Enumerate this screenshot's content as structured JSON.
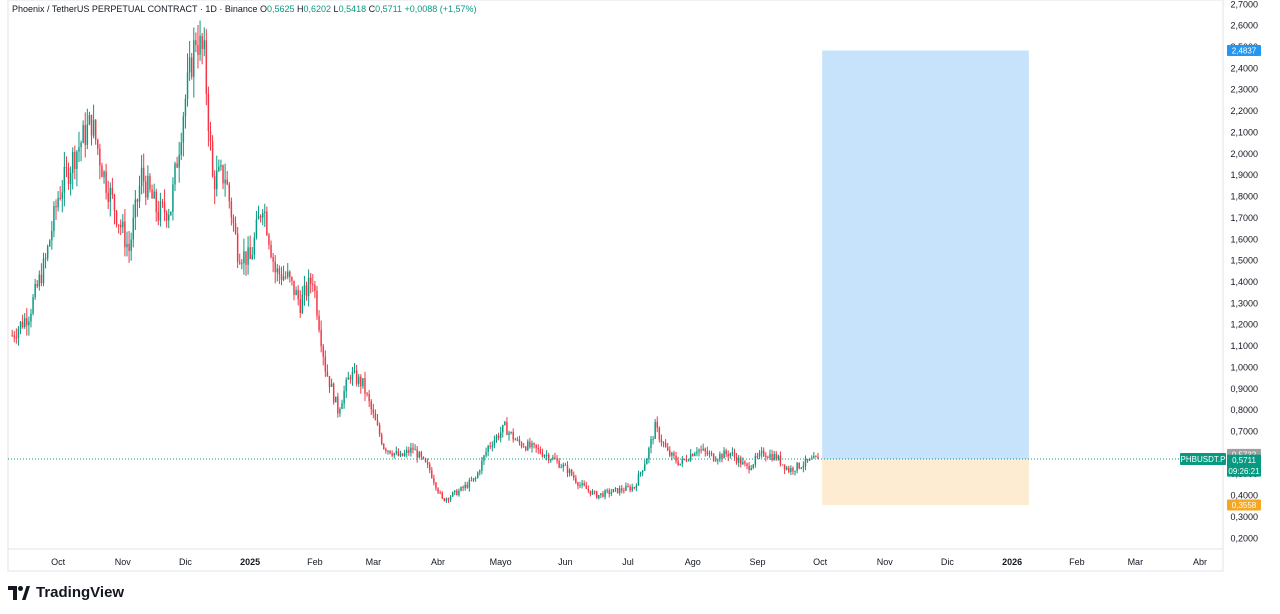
{
  "legend": {
    "symbol": "Phoenix / TetherUS PERPETUAL CONTRACT · 1D · Binance",
    "open_label": "O",
    "open": "0,5625",
    "high_label": "H",
    "high": "0,6202",
    "low_label": "L",
    "low": "0,5418",
    "close_label": "C",
    "close": "0,5711",
    "change": "+0,0088 (+1,57%)"
  },
  "footer": {
    "brand": "TradingView"
  },
  "colors": {
    "up": "#089981",
    "down": "#f23645",
    "profit_zone": "#c6e3fb",
    "loss_zone": "#fdecd1",
    "target_badge": "#2196f3",
    "stop_badge": "#f5a623",
    "last_price_badge": "#089981",
    "high_badge": "#9e9e9e"
  },
  "chart_data": {
    "type": "candlestick",
    "ylim": [
      0.15,
      2.72
    ],
    "y_ticks": [
      "2,7000",
      "2,6000",
      "2,5000",
      "2,4000",
      "2,3000",
      "2,2000",
      "2,1000",
      "2,0000",
      "1,9000",
      "1,8000",
      "1,7000",
      "1,6000",
      "1,5000",
      "1,4000",
      "1,3000",
      "1,2000",
      "1,1000",
      "1,0000",
      "0,9000",
      "0,8000",
      "0,7000",
      "0,6000",
      "0,5000",
      "0,4000",
      "0,3000",
      "0,2000"
    ],
    "x_ticks": [
      {
        "label": "Oct",
        "day": 22,
        "bold": false
      },
      {
        "label": "Nov",
        "day": 53,
        "bold": false
      },
      {
        "label": "Dic",
        "day": 83,
        "bold": false
      },
      {
        "label": "2025",
        "day": 114,
        "bold": true
      },
      {
        "label": "Feb",
        "day": 145,
        "bold": false
      },
      {
        "label": "Mar",
        "day": 173,
        "bold": false
      },
      {
        "label": "Abr",
        "day": 204,
        "bold": false
      },
      {
        "label": "Mayo",
        "day": 234,
        "bold": false
      },
      {
        "label": "Jun",
        "day": 265,
        "bold": false
      },
      {
        "label": "Jul",
        "day": 295,
        "bold": false
      },
      {
        "label": "Ago",
        "day": 326,
        "bold": false
      },
      {
        "label": "Sep",
        "day": 357,
        "bold": false
      },
      {
        "label": "Oct",
        "day": 387,
        "bold": false
      },
      {
        "label": "Nov",
        "day": 418,
        "bold": false
      },
      {
        "label": "Dic",
        "day": 448,
        "bold": false
      },
      {
        "label": "2026",
        "day": 479,
        "bold": true
      },
      {
        "label": "Feb",
        "day": 510,
        "bold": false
      },
      {
        "label": "Mar",
        "day": 538,
        "bold": false
      },
      {
        "label": "Abr",
        "day": 569,
        "bold": false
      }
    ],
    "x_range_days": [
      -2,
      580
    ],
    "trend_points": [
      [
        0,
        1.15
      ],
      [
        8,
        1.25
      ],
      [
        16,
        1.5
      ],
      [
        22,
        1.8
      ],
      [
        30,
        2.0
      ],
      [
        38,
        2.15
      ],
      [
        44,
        1.9
      ],
      [
        50,
        1.72
      ],
      [
        56,
        1.55
      ],
      [
        62,
        1.9
      ],
      [
        70,
        1.72
      ],
      [
        76,
        1.75
      ],
      [
        82,
        2.2
      ],
      [
        88,
        2.55
      ],
      [
        92,
        2.45
      ],
      [
        96,
        1.88
      ],
      [
        102,
        1.9
      ],
      [
        108,
        1.55
      ],
      [
        114,
        1.5
      ],
      [
        120,
        1.78
      ],
      [
        126,
        1.45
      ],
      [
        132,
        1.42
      ],
      [
        138,
        1.3
      ],
      [
        144,
        1.42
      ],
      [
        150,
        1.0
      ],
      [
        156,
        0.8
      ],
      [
        162,
        0.97
      ],
      [
        168,
        0.92
      ],
      [
        172,
        0.8
      ],
      [
        178,
        0.63
      ],
      [
        186,
        0.58
      ],
      [
        192,
        0.62
      ],
      [
        200,
        0.52
      ],
      [
        206,
        0.38
      ],
      [
        214,
        0.42
      ],
      [
        222,
        0.48
      ],
      [
        228,
        0.63
      ],
      [
        236,
        0.72
      ],
      [
        242,
        0.65
      ],
      [
        250,
        0.62
      ],
      [
        258,
        0.58
      ],
      [
        266,
        0.52
      ],
      [
        272,
        0.45
      ],
      [
        280,
        0.4
      ],
      [
        288,
        0.42
      ],
      [
        298,
        0.44
      ],
      [
        304,
        0.58
      ],
      [
        308,
        0.72
      ],
      [
        314,
        0.6
      ],
      [
        320,
        0.55
      ],
      [
        328,
        0.62
      ],
      [
        336,
        0.58
      ],
      [
        344,
        0.6
      ],
      [
        352,
        0.53
      ],
      [
        360,
        0.6
      ],
      [
        366,
        0.58
      ],
      [
        372,
        0.52
      ],
      [
        382,
        0.56
      ],
      [
        386,
        0.5711
      ]
    ],
    "position": {
      "start_day": 388,
      "end_day": 487,
      "entry": 0.5711,
      "target": 2.4837,
      "stop": 0.3558,
      "target_label": "2,4837",
      "stop_label": "0,3558"
    },
    "last_price": {
      "value": 0.5711,
      "label": "0,5711",
      "countdown": "09:26:21",
      "ticker": "PHBUSDT.P",
      "high_value": 0.5732,
      "high_label": "0,5732"
    }
  }
}
